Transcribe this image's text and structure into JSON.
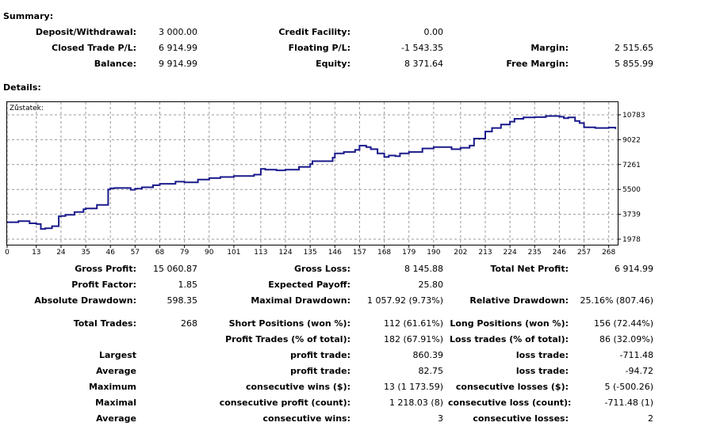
{
  "summary": {
    "title": "Summary:",
    "rows": [
      {
        "l1": "Deposit/Withdrawal:",
        "v1": "3 000.00",
        "l2": "Credit Facility:",
        "v2": "0.00",
        "l3": "",
        "v3": ""
      },
      {
        "l1": "Closed Trade P/L:",
        "v1": "6 914.99",
        "l2": "Floating P/L:",
        "v2": "-1 543.35",
        "l3": "Margin:",
        "v3": "2 515.65"
      },
      {
        "l1": "Balance:",
        "v1": "9 914.99",
        "l2": "Equity:",
        "v2": "8 371.64",
        "l3": "Free Margin:",
        "v3": "5 855.99"
      }
    ]
  },
  "details": {
    "title": "Details:",
    "rows": [
      {
        "l1": "Gross Profit:",
        "v1": "15 060.87",
        "l2": "Gross Loss:",
        "v2": "8 145.88",
        "l3": "Total Net Profit:",
        "v3": "6 914.99"
      },
      {
        "l1": "Profit Factor:",
        "v1": "1.85",
        "l2": "Expected Payoff:",
        "v2": "25.80",
        "l3": "",
        "v3": ""
      },
      {
        "l1": "Absolute Drawdown:",
        "v1": "598.35",
        "l2": "Maximal Drawdown:",
        "v2": "1 057.92 (9.73%)",
        "l3": "Relative Drawdown:",
        "v3": "25.16% (807.46)"
      },
      {
        "l1": "Total Trades:",
        "v1": "268",
        "l2": "Short Positions (won %):",
        "v2": "112 (61.61%)",
        "l3": "Long Positions (won %):",
        "v3": "156 (72.44%)"
      },
      {
        "l1": "",
        "v1": "",
        "l2": "Profit Trades (% of total):",
        "v2": "182 (67.91%)",
        "l3": "Loss trades (% of total):",
        "v3": "86 (32.09%)"
      },
      {
        "l1": "Largest",
        "v1": "",
        "l2": "profit trade:",
        "v2": "860.39",
        "l3": "loss trade:",
        "v3": "-711.48"
      },
      {
        "l1": "Average",
        "v1": "",
        "l2": "profit trade:",
        "v2": "82.75",
        "l3": "loss trade:",
        "v3": "-94.72"
      },
      {
        "l1": "Maximum",
        "v1": "",
        "l2": "consecutive wins ($):",
        "v2": "13 (1 173.59)",
        "l3": "consecutive losses ($):",
        "v3": "5 (-500.26)"
      },
      {
        "l1": "Maximal",
        "v1": "",
        "l2": "consecutive profit (count):",
        "v2": "1 218.03 (8)",
        "l3": "consecutive loss (count):",
        "v3": "-711.48 (1)"
      },
      {
        "l1": "Average",
        "v1": "",
        "l2": "consecutive wins:",
        "v2": "3",
        "l3": "consecutive losses:",
        "v3": "2"
      }
    ]
  },
  "chart_data": {
    "type": "line",
    "title": "Zůstatek:",
    "x_ticks": [
      0,
      13,
      24,
      35,
      46,
      57,
      68,
      79,
      90,
      101,
      113,
      124,
      135,
      146,
      157,
      168,
      179,
      190,
      202,
      213,
      224,
      235,
      246,
      257,
      268
    ],
    "y_ticks": [
      1978,
      3739,
      5500,
      7261,
      9022,
      10783
    ],
    "xlim": [
      0,
      272
    ],
    "ylim": [
      1978,
      11400
    ],
    "grid": true,
    "line_color": "#1a1a8c",
    "series": [
      {
        "x": [
          0,
          5,
          10,
          13,
          15,
          17,
          20,
          23,
          24,
          26,
          30,
          34,
          35,
          40,
          45,
          46,
          48,
          55,
          57,
          60,
          65,
          68,
          75,
          79,
          85,
          90,
          95,
          101,
          110,
          113,
          115,
          120,
          124,
          130,
          135,
          136,
          145,
          146,
          150,
          155,
          157,
          160,
          162,
          165,
          168,
          170,
          173,
          175,
          179,
          185,
          190,
          195,
          198,
          202,
          206,
          208,
          213,
          216,
          220,
          224,
          226,
          230,
          235,
          240,
          246,
          248,
          250,
          253,
          255,
          257,
          262,
          268,
          271
        ],
        "y": [
          3180,
          3250,
          3100,
          3050,
          2700,
          2750,
          2900,
          3600,
          3620,
          3700,
          3900,
          4100,
          4150,
          4400,
          5500,
          5580,
          5600,
          5480,
          5550,
          5650,
          5800,
          5900,
          6050,
          6000,
          6200,
          6300,
          6380,
          6450,
          6550,
          6950,
          6900,
          6850,
          6900,
          7100,
          7300,
          7500,
          7750,
          8050,
          8150,
          8300,
          8600,
          8500,
          8350,
          8050,
          7800,
          7900,
          7850,
          8050,
          8150,
          8400,
          8500,
          8500,
          8350,
          8450,
          8600,
          9100,
          9600,
          9850,
          10100,
          10300,
          10500,
          10600,
          10620,
          10700,
          10650,
          10550,
          10600,
          10350,
          10200,
          9900,
          9850,
          9880,
          9780
        ]
      }
    ]
  }
}
